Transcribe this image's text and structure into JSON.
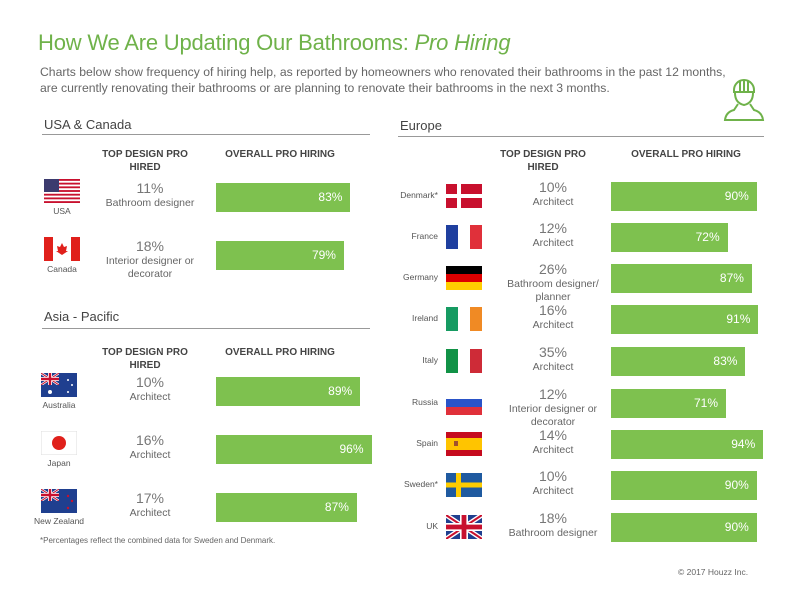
{
  "header": {
    "title": "How We Are Updating Our Bathrooms:",
    "title_italic": "Pro Hiring",
    "subtitle": "Charts below show frequency of hiring help, as reported by homeowners who renovated their bathrooms in the past 12 months, are currently renovating their bathrooms or are planning to renovate their bathrooms in the next 3 months.",
    "icon": "contractor-hardhat-icon"
  },
  "columns": {
    "top_design": "TOP DESIGN PRO HIRED",
    "overall": "OVERALL PRO HIRING"
  },
  "colors": {
    "accent": "#6fb24a",
    "bar": "#7ec14f"
  },
  "chart_data": [
    {
      "type": "bar",
      "title": "USA & Canada",
      "orientation": "horizontal",
      "xlim": [
        0,
        100
      ],
      "categories": [
        "USA",
        "Canada"
      ],
      "values": [
        83,
        79
      ],
      "value_labels": [
        "83%",
        "79%"
      ],
      "top_design_pct": [
        "11%",
        "18%"
      ],
      "top_design_role": [
        "Bathroom designer",
        "Interior designer or decorator"
      ],
      "flags": [
        "usa",
        "canada"
      ]
    },
    {
      "type": "bar",
      "title": "Asia - Pacific",
      "orientation": "horizontal",
      "xlim": [
        0,
        100
      ],
      "categories": [
        "Australia",
        "Japan",
        "New Zealand"
      ],
      "values": [
        89,
        96,
        87
      ],
      "value_labels": [
        "89%",
        "96%",
        "87%"
      ],
      "top_design_pct": [
        "10%",
        "16%",
        "17%"
      ],
      "top_design_role": [
        "Architect",
        "Architect",
        "Architect"
      ],
      "flags": [
        "australia",
        "japan",
        "newzealand"
      ]
    },
    {
      "type": "bar",
      "title": "Europe",
      "orientation": "horizontal",
      "xlim": [
        0,
        100
      ],
      "categories": [
        "Denmark*",
        "France",
        "Germany",
        "Ireland",
        "Italy",
        "Russia",
        "Spain",
        "Sweden*",
        "UK"
      ],
      "values": [
        90,
        72,
        87,
        91,
        83,
        71,
        94,
        90,
        90
      ],
      "value_labels": [
        "90%",
        "72%",
        "87%",
        "91%",
        "83%",
        "71%",
        "94%",
        "90%",
        "90%"
      ],
      "top_design_pct": [
        "10%",
        "12%",
        "26%",
        "16%",
        "35%",
        "12%",
        "14%",
        "10%",
        "18%"
      ],
      "top_design_role": [
        "Architect",
        "Architect",
        "Bathroom designer/ planner",
        "Architect",
        "Architect",
        "Interior designer or decorator",
        "Architect",
        "Architect",
        "Bathroom designer"
      ],
      "flags": [
        "denmark",
        "france",
        "germany",
        "ireland",
        "italy",
        "russia",
        "spain",
        "sweden",
        "uk"
      ]
    }
  ],
  "footnote": "*Percentages reflect the combined data for Sweden and Denmark.",
  "copyright": "© 2017 Houzz Inc."
}
